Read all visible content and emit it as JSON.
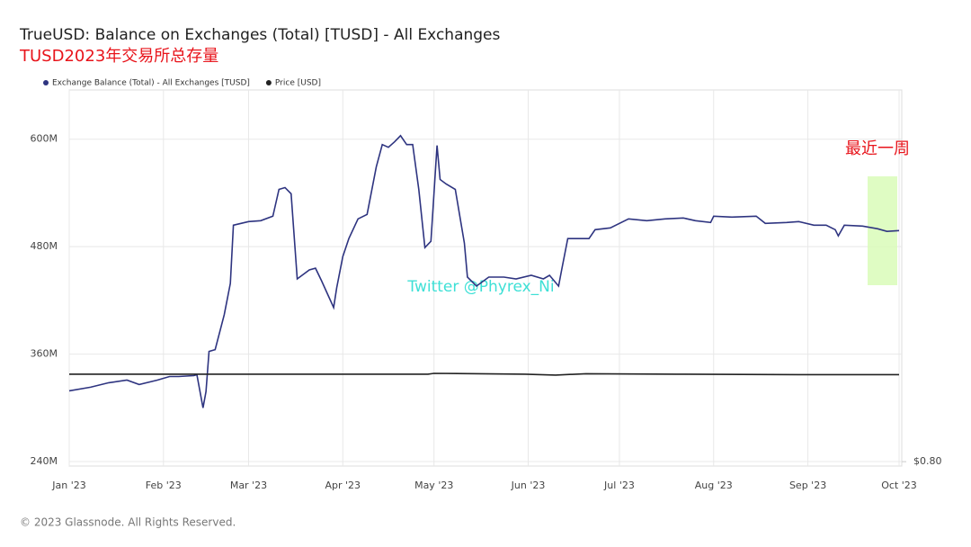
{
  "chart_data": {
    "type": "line",
    "title": "TrueUSD: Balance on Exchanges (Total) [TUSD] - All Exchanges",
    "subtitle": "TUSD2023年交易所总存量",
    "annotations": [
      "最近一周",
      "Twitter @Phyrex_Ni"
    ],
    "footer": "© 2023 Glassnode. All Rights Reserved.",
    "grid": true,
    "xlim": [
      0,
      273
    ],
    "xticks": [
      {
        "value": 0,
        "label": "Jan '23"
      },
      {
        "value": 31,
        "label": "Feb '23"
      },
      {
        "value": 59,
        "label": "Mar '23"
      },
      {
        "value": 90,
        "label": "Apr '23"
      },
      {
        "value": 120,
        "label": "May '23"
      },
      {
        "value": 151,
        "label": "Jun '23"
      },
      {
        "value": 181,
        "label": "Jul '23"
      },
      {
        "value": 212,
        "label": "Aug '23"
      },
      {
        "value": 243,
        "label": "Sep '23"
      },
      {
        "value": 273,
        "label": "Oct '23"
      }
    ],
    "ylim": [
      235000000,
      655000000
    ],
    "yticks": [
      {
        "value": 240000000,
        "label": "240M"
      },
      {
        "value": 360000000,
        "label": "360M"
      },
      {
        "value": 480000000,
        "label": "480M"
      },
      {
        "value": 600000000,
        "label": "600M"
      }
    ],
    "y2lim": [
      0.79,
      1.65
    ],
    "y2ticks": [
      {
        "value": 0.8,
        "label": "$0.80"
      }
    ],
    "series": [
      {
        "name": "Exchange Balance (Total) - All Exchanges [TUSD]",
        "color": "#2e3480",
        "x": [
          0,
          7,
          13,
          19,
          23,
          29,
          33,
          36,
          41,
          42,
          44,
          45,
          46,
          48,
          51,
          53,
          54,
          59,
          63,
          67,
          69,
          71,
          73,
          75,
          79,
          81,
          83,
          87,
          88,
          90,
          92,
          95,
          98,
          101,
          103,
          105,
          107,
          109,
          111,
          113,
          115,
          117,
          119,
          121,
          122,
          124,
          127,
          130,
          131,
          134,
          138,
          143,
          147,
          152,
          156,
          158,
          161,
          162,
          164,
          167,
          171,
          173,
          178,
          184,
          190,
          196,
          202,
          206,
          211,
          212,
          218,
          226,
          229,
          236,
          240,
          245,
          249,
          252,
          253,
          255,
          261,
          266,
          269,
          273
        ],
        "values": [
          319000000,
          323000000,
          328000000,
          331000000,
          326000000,
          331000000,
          335000000,
          335000000,
          336000000,
          337000000,
          300000000,
          318000000,
          363000000,
          365000000,
          404000000,
          439000000,
          504000000,
          508000000,
          509000000,
          514000000,
          544000000,
          546000000,
          539000000,
          444000000,
          454000000,
          456000000,
          442000000,
          412000000,
          434000000,
          469000000,
          489000000,
          511000000,
          516000000,
          569000000,
          594000000,
          591000000,
          597000000,
          604000000,
          594000000,
          594000000,
          544000000,
          479000000,
          486000000,
          593000000,
          555000000,
          550000000,
          544000000,
          484000000,
          446000000,
          436000000,
          446000000,
          446000000,
          444000000,
          448000000,
          444000000,
          448000000,
          436000000,
          454000000,
          489000000,
          489000000,
          489000000,
          499000000,
          501000000,
          511000000,
          509000000,
          511000000,
          512000000,
          509000000,
          507000000,
          514000000,
          513000000,
          514000000,
          506000000,
          507000000,
          508000000,
          504000000,
          504000000,
          499000000,
          492000000,
          504000000,
          503000000,
          500000000,
          497000000,
          498000000
        ]
      },
      {
        "name": "Price [USD]",
        "color": "#222222",
        "axis": "y2",
        "x": [
          0,
          30,
          60,
          90,
          118,
          120,
          150,
          160,
          170,
          200,
          240,
          273
        ],
        "values": [
          1.0,
          1.0,
          1.0,
          1.0,
          1.0,
          1.002,
          1.0,
          0.998,
          1.001,
          1.0,
          0.999,
          0.999
        ]
      }
    ]
  }
}
